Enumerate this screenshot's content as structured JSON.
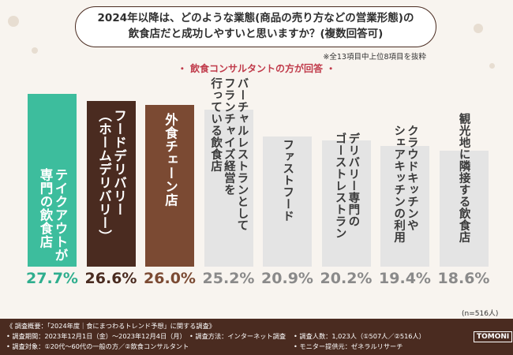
{
  "chart_data": {
    "type": "bar",
    "title": "2024年以降は、どのような業態(商品の売り方などの営業形態)の\n飲食店だと成功しやすいと思いますか？(複数回答可)",
    "note": "※全13項目中上位8項目を抜粋",
    "subtitle": "・ 飲食コンサルタントの方が回答 ・",
    "categories": [
      "テイクアウトが\n専門の飲食店",
      "フードデリバリー\n（ホームデリバリー）",
      "外食チェーン店",
      "バーチャルレストランとして\nフランチャイズ経営を\n行っている飲食店",
      "ファストフード",
      "デリバリー専門の\nゴーストレストラン",
      "クラウドキッチンや\nシェアキッチンの利用",
      "観光地に隣接する飲食店"
    ],
    "values": [
      27.7,
      26.6,
      26.0,
      25.2,
      20.9,
      20.2,
      19.4,
      18.6
    ],
    "value_labels": [
      "27.7%",
      "26.6%",
      "26.0%",
      "25.2%",
      "20.9%",
      "20.2%",
      "19.4%",
      "18.6%"
    ],
    "colors": [
      "#3dbd9d",
      "#4a2b20",
      "#7b4a33",
      "#e4e4e4",
      "#e4e4e4",
      "#e4e4e4",
      "#e4e4e4",
      "#e4e4e4"
    ],
    "label_colors": [
      "#ffffff",
      "#ffffff",
      "#ffffff",
      "#3a3a3a",
      "#3a3a3a",
      "#3a3a3a",
      "#3a3a3a",
      "#3a3a3a"
    ],
    "value_colors": [
      "#2fae8e",
      "#4a2b20",
      "#7b4a33",
      "#8a8a8a",
      "#8a8a8a",
      "#8a8a8a",
      "#8a8a8a",
      "#8a8a8a"
    ],
    "sample_size": "(n=516人)"
  },
  "footer": {
    "heading": "《 調査概要：「2024年度｜食にまつわるトレンド予想」に関する調査》",
    "period": "• 調査期間：2023年12月1日（金）〜2023年12月4日（月）",
    "method": "• 調査方法：インターネット調査",
    "count": "• 調査人数：1,023人（①507人／②516人）",
    "target": "• 調査対象：①20代〜60代の一般の方／②飲食コンサルタント",
    "provider": "• モニター提供元：ゼネラルリサーチ",
    "logo": "TOMONI"
  }
}
